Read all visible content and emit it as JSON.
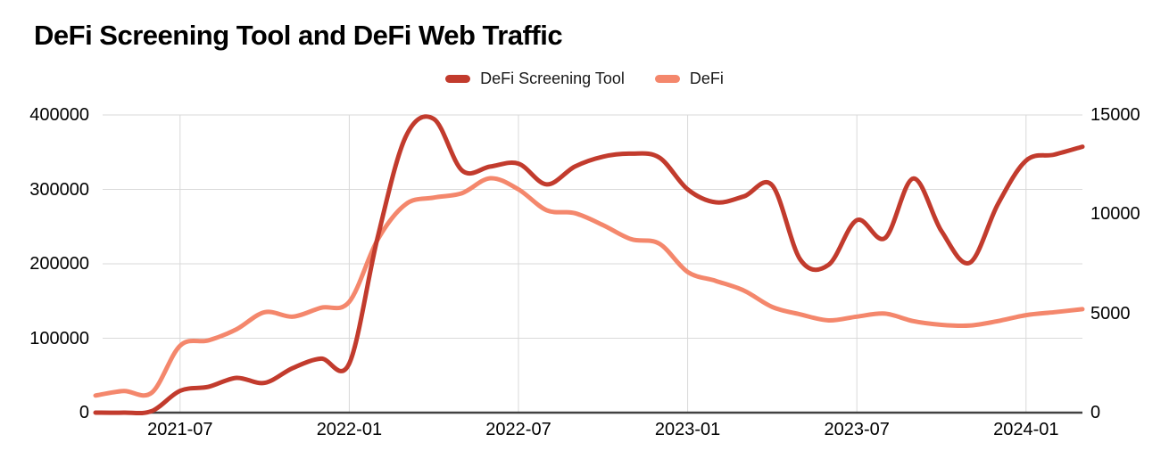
{
  "title": "DeFi Screening Tool and DeFi Web Traffic",
  "legend": [
    {
      "label": "DeFi Screening Tool",
      "color": "#c23b2d"
    },
    {
      "label": "DeFi",
      "color": "#f4876c"
    }
  ],
  "colors": {
    "gridline": "#d9d9d9",
    "baseline": "#424242",
    "text": "#000000"
  },
  "chart_data": {
    "type": "line",
    "title": "DeFi Screening Tool and DeFi Web Traffic",
    "x": [
      "2021-04",
      "2021-05",
      "2021-06",
      "2021-07",
      "2021-08",
      "2021-09",
      "2021-10",
      "2021-11",
      "2021-12",
      "2022-01",
      "2022-02",
      "2022-03",
      "2022-04",
      "2022-05",
      "2022-06",
      "2022-07",
      "2022-08",
      "2022-09",
      "2022-10",
      "2022-11",
      "2022-12",
      "2023-01",
      "2023-02",
      "2023-03",
      "2023-04",
      "2023-05",
      "2023-06",
      "2023-07",
      "2023-08",
      "2023-09",
      "2023-10",
      "2023-11",
      "2023-12",
      "2024-01",
      "2024-02",
      "2024-03"
    ],
    "x_tick_labels": [
      "2021-07",
      "2022-01",
      "2022-07",
      "2023-01",
      "2023-07",
      "2024-01"
    ],
    "left_axis": {
      "range": [
        0,
        400000
      ],
      "ticks": [
        "0",
        "100000",
        "200000",
        "300000",
        "400000"
      ],
      "tick_values": [
        0,
        100000,
        200000,
        300000,
        400000
      ]
    },
    "right_axis": {
      "range": [
        0,
        15000
      ],
      "ticks": [
        "0",
        "5000",
        "10000",
        "15000"
      ],
      "tick_values": [
        0,
        5000,
        10000,
        15000
      ]
    },
    "grid": true,
    "legend_position": "top-center",
    "series": [
      {
        "name": "DeFi Screening Tool",
        "axis": "right",
        "color": "#c23b2d",
        "values": [
          0,
          0,
          80,
          1100,
          1300,
          1750,
          1500,
          2250,
          2720,
          2480,
          8800,
          13900,
          14800,
          12200,
          12400,
          12550,
          11500,
          12400,
          12900,
          13050,
          12850,
          11250,
          10600,
          10900,
          11450,
          7700,
          7450,
          9700,
          8800,
          11800,
          9150,
          7550,
          10500,
          12700,
          13000,
          13400
        ]
      },
      {
        "name": "DeFi",
        "axis": "left",
        "color": "#f4876c",
        "values": [
          23000,
          29000,
          27000,
          90000,
          97000,
          112000,
          135000,
          129000,
          141000,
          149000,
          232000,
          280000,
          289000,
          295000,
          315000,
          300000,
          272000,
          268000,
          252000,
          233000,
          227000,
          189000,
          177000,
          164000,
          142000,
          132000,
          124000,
          129000,
          133000,
          123000,
          118000,
          117000,
          123000,
          131000,
          135000,
          139000
        ]
      }
    ]
  }
}
